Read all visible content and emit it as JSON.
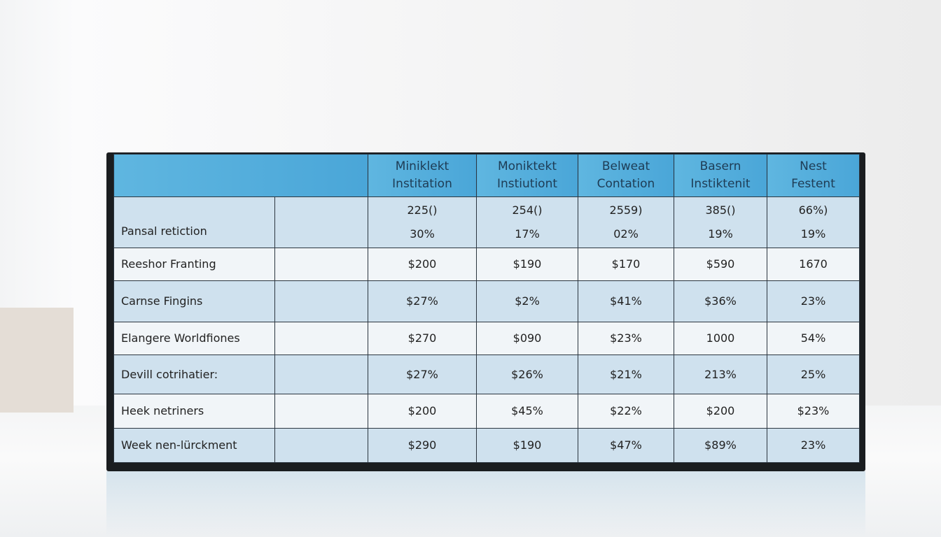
{
  "table": {
    "headers": [
      [
        "Miniklekt",
        "Institation"
      ],
      [
        "Moniktekt",
        "Instiutiont"
      ],
      [
        "Belweat",
        "Contation"
      ],
      [
        "Basern",
        "Instiktenit"
      ],
      [
        "Nest",
        "Festent"
      ]
    ],
    "rows": [
      {
        "label": "Pansal retiction",
        "cells": [
          [
            "225()",
            "30%"
          ],
          [
            "254()",
            "17%"
          ],
          [
            "2559)",
            "02%"
          ],
          [
            "385()",
            "19%"
          ],
          [
            "66%)",
            "19%"
          ]
        ]
      },
      {
        "label": "Reeshor Franting",
        "cells": [
          [
            "$200"
          ],
          [
            "$190"
          ],
          [
            "$170"
          ],
          [
            "$590"
          ],
          [
            "1670"
          ]
        ]
      },
      {
        "label": "Carnse Fingins",
        "cells": [
          [
            "$27%"
          ],
          [
            "$2%"
          ],
          [
            "$41%"
          ],
          [
            "$36%"
          ],
          [
            "23%"
          ]
        ]
      },
      {
        "label": "Elangere Worldfiones",
        "cells": [
          [
            "$270"
          ],
          [
            "$090"
          ],
          [
            "$23%"
          ],
          [
            "1000"
          ],
          [
            "54%"
          ]
        ]
      },
      {
        "label": "Devill cotrihatier:",
        "cells": [
          [
            "$27%"
          ],
          [
            "$26%"
          ],
          [
            "$21%"
          ],
          [
            "213%"
          ],
          [
            "25%"
          ]
        ]
      },
      {
        "label": "Heek netriners",
        "cells": [
          [
            "$200"
          ],
          [
            "$45%"
          ],
          [
            "$22%"
          ],
          [
            "$200"
          ],
          [
            "$23%"
          ]
        ]
      },
      {
        "label": "Week nen-lürckment",
        "cells": [
          [
            "$290"
          ],
          [
            "$190"
          ],
          [
            "$47%"
          ],
          [
            "$89%"
          ],
          [
            "23%"
          ]
        ]
      }
    ]
  }
}
